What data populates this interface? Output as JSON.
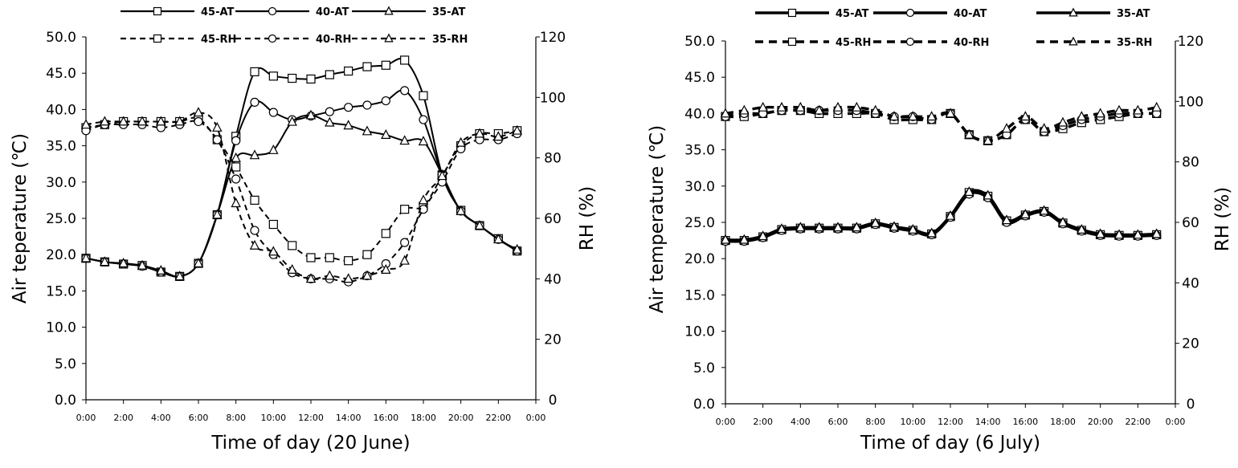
{
  "chart_data": [
    {
      "type": "line",
      "panel": "left",
      "xlabel": "Time of day (20 June)",
      "ylabel_left": "Air teperature (℃)",
      "ylabel_right": "RH (%)",
      "x_ticks": [
        "0:00",
        "2:00",
        "4:00",
        "6:00",
        "8:00",
        "10:00",
        "12:00",
        "14:00",
        "16:00",
        "18:00",
        "20:00",
        "22:00",
        "0:00"
      ],
      "y_left_ticks": [
        "0.0",
        "5.0",
        "10.0",
        "15.0",
        "20.0",
        "25.0",
        "30.0",
        "35.0",
        "40.0",
        "45.0",
        "50.0"
      ],
      "y_right_ticks": [
        "0",
        "20",
        "40",
        "60",
        "80",
        "100",
        "120"
      ],
      "ylim_left": [
        0,
        50
      ],
      "ylim_right": [
        0,
        120
      ],
      "xlim": [
        0,
        24
      ],
      "x": [
        0,
        1,
        2,
        3,
        4,
        5,
        6,
        7,
        8,
        9,
        10,
        11,
        12,
        13,
        14,
        15,
        16,
        17,
        18,
        19,
        20,
        21,
        22,
        23
      ],
      "legend": "top",
      "series": [
        {
          "name": "45-AT",
          "axis": "left",
          "style": "solid",
          "marker": "square",
          "values": [
            19.5,
            19.0,
            18.7,
            18.5,
            17.6,
            17.0,
            18.8,
            25.5,
            36.3,
            45.2,
            44.6,
            44.3,
            44.2,
            44.8,
            45.3,
            45.9,
            46.1,
            46.8,
            41.9,
            31.0,
            26.1,
            24.0,
            22.2,
            20.5
          ]
        },
        {
          "name": "40-AT",
          "axis": "left",
          "style": "solid",
          "marker": "circle",
          "values": [
            19.5,
            19.0,
            18.7,
            18.4,
            17.6,
            17.0,
            18.8,
            25.5,
            35.7,
            41.0,
            39.6,
            38.6,
            39.1,
            39.7,
            40.3,
            40.6,
            41.2,
            42.6,
            38.6,
            31.0,
            26.0,
            24.0,
            22.1,
            20.5
          ]
        },
        {
          "name": "35-AT",
          "axis": "left",
          "style": "solid",
          "marker": "triangle",
          "values": [
            19.5,
            19.0,
            18.8,
            18.5,
            17.8,
            17.0,
            18.8,
            25.5,
            33.3,
            33.7,
            34.4,
            38.3,
            39.2,
            38.2,
            37.8,
            37.0,
            36.5,
            35.7,
            35.6,
            31.0,
            26.0,
            24.0,
            22.1,
            20.7
          ]
        },
        {
          "name": "45-RH",
          "axis": "right",
          "style": "dashed",
          "marker": "square",
          "values": [
            90,
            91,
            92,
            92,
            92,
            92,
            93,
            86,
            77,
            66,
            58,
            51,
            47,
            47,
            46,
            48,
            55,
            63,
            64,
            74,
            84,
            88,
            88,
            89
          ]
        },
        {
          "name": "40-RH",
          "axis": "right",
          "style": "dashed",
          "marker": "circle",
          "values": [
            89,
            91,
            91,
            91,
            90,
            91,
            92,
            86,
            73,
            56,
            48,
            42,
            40,
            40,
            39,
            41,
            45,
            52,
            63,
            72,
            83,
            86,
            86,
            88
          ]
        },
        {
          "name": "35-RH",
          "axis": "right",
          "style": "dashed",
          "marker": "triangle",
          "values": [
            91,
            92,
            92,
            92,
            92,
            92,
            95,
            90,
            65,
            51,
            49,
            43,
            40,
            41,
            40,
            41,
            43,
            46,
            66,
            74,
            85,
            88,
            87,
            89
          ]
        }
      ]
    },
    {
      "type": "line",
      "panel": "right",
      "xlabel": "Time of day (6 July)",
      "ylabel_left": "Air temperature (℃)",
      "ylabel_right": "RH (%)",
      "x_ticks": [
        "0:00",
        "2:00",
        "4:00",
        "6:00",
        "8:00",
        "10:00",
        "12:00",
        "14:00",
        "16:00",
        "18:00",
        "20:00",
        "22:00",
        "0:00"
      ],
      "y_left_ticks": [
        "0.0",
        "5.0",
        "10.0",
        "15.0",
        "20.0",
        "25.0",
        "30.0",
        "35.0",
        "40.0",
        "45.0",
        "50.0"
      ],
      "y_right_ticks": [
        "0",
        "20",
        "40",
        "60",
        "80",
        "100",
        "120"
      ],
      "ylim_left": [
        0,
        50
      ],
      "ylim_right": [
        0,
        120
      ],
      "xlim": [
        0,
        24
      ],
      "x": [
        0,
        1,
        2,
        3,
        4,
        5,
        6,
        7,
        8,
        9,
        10,
        11,
        12,
        13,
        14,
        15,
        16,
        17,
        18,
        19,
        20,
        21,
        22,
        23
      ],
      "legend": "top",
      "series": [
        {
          "name": "45-AT",
          "axis": "left",
          "style": "solid",
          "marker": "square",
          "values": [
            22.5,
            22.5,
            23.0,
            24.0,
            24.2,
            24.2,
            24.2,
            24.2,
            24.8,
            24.3,
            23.9,
            23.4,
            25.8,
            29.1,
            28.6,
            25.2,
            26.0,
            26.5,
            24.9,
            23.9,
            23.3,
            23.2,
            23.2,
            23.3
          ]
        },
        {
          "name": "40-AT",
          "axis": "left",
          "style": "solid",
          "marker": "circle",
          "values": [
            22.4,
            22.4,
            22.9,
            23.9,
            24.1,
            24.1,
            24.1,
            24.1,
            24.7,
            24.2,
            23.8,
            23.3,
            25.7,
            28.9,
            28.4,
            25.0,
            25.9,
            26.4,
            24.8,
            23.8,
            23.2,
            23.1,
            23.1,
            23.2
          ]
        },
        {
          "name": "35-AT",
          "axis": "left",
          "style": "solid",
          "marker": "triangle",
          "values": [
            22.6,
            22.6,
            23.1,
            24.1,
            24.3,
            24.3,
            24.3,
            24.3,
            24.9,
            24.4,
            24.0,
            23.5,
            25.9,
            29.2,
            28.7,
            25.3,
            26.1,
            26.6,
            25.0,
            24.0,
            23.4,
            23.3,
            23.3,
            23.4
          ]
        },
        {
          "name": "45-RH",
          "axis": "right",
          "style": "dashed",
          "marker": "square",
          "values": [
            95,
            95,
            96,
            97,
            97,
            96,
            96,
            96,
            96,
            94,
            94,
            94,
            96,
            89,
            87,
            89,
            94,
            90,
            91,
            93,
            94,
            95,
            96,
            96
          ]
        },
        {
          "name": "40-RH",
          "axis": "right",
          "style": "dashed",
          "marker": "circle",
          "values": [
            95,
            96,
            96,
            97,
            97,
            97,
            97,
            97,
            96,
            95,
            95,
            94,
            96,
            89,
            87,
            89,
            94,
            90,
            92,
            94,
            95,
            96,
            96,
            96
          ]
        },
        {
          "name": "35-RH",
          "axis": "right",
          "style": "dashed",
          "marker": "triangle",
          "values": [
            96,
            97,
            98,
            98,
            98,
            97,
            98,
            98,
            97,
            95,
            95,
            95,
            96,
            89,
            87,
            91,
            95,
            91,
            93,
            95,
            96,
            97,
            97,
            98
          ]
        }
      ]
    }
  ]
}
